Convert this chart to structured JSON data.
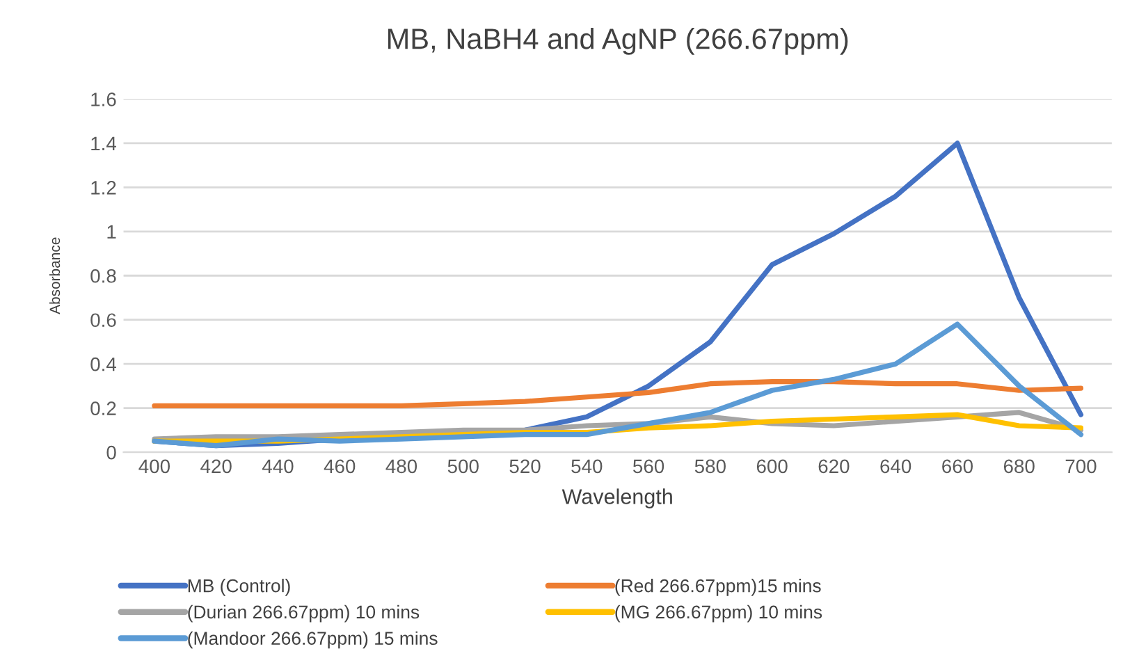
{
  "chart_data": {
    "type": "line",
    "title": "MB, NaBH4 and AgNP (266.67ppm)",
    "xlabel": "Wavelength",
    "ylabel": "Absorbance",
    "categories": [
      "400",
      "420",
      "440",
      "460",
      "480",
      "500",
      "520",
      "540",
      "560",
      "580",
      "600",
      "620",
      "640",
      "660",
      "680",
      "700"
    ],
    "series": [
      {
        "name": "MB (Control)",
        "color": "#4472c4",
        "values": [
          0.05,
          0.03,
          0.04,
          0.06,
          0.07,
          0.08,
          0.1,
          0.16,
          0.3,
          0.5,
          0.85,
          0.99,
          1.16,
          1.4,
          0.7,
          0.17
        ]
      },
      {
        "name": "(Red 266.67ppm)15 mins",
        "color": "#ed7d31",
        "values": [
          0.21,
          0.21,
          0.21,
          0.21,
          0.21,
          0.22,
          0.23,
          0.25,
          0.27,
          0.31,
          0.32,
          0.32,
          0.31,
          0.31,
          0.28,
          0.29
        ]
      },
      {
        "name": "(Durian 266.67ppm) 10 mins",
        "color": "#a5a5a5",
        "values": [
          0.06,
          0.07,
          0.07,
          0.08,
          0.09,
          0.1,
          0.1,
          0.12,
          0.13,
          0.16,
          0.13,
          0.12,
          0.14,
          0.16,
          0.18,
          0.1
        ]
      },
      {
        "name": "(MG 266.67ppm) 10 mins",
        "color": "#ffc000",
        "values": [
          0.05,
          0.05,
          0.05,
          0.06,
          0.07,
          0.08,
          0.09,
          0.09,
          0.11,
          0.12,
          0.14,
          0.15,
          0.16,
          0.17,
          0.12,
          0.11
        ]
      },
      {
        "name": "(Mandoor 266.67ppm) 15 mins",
        "color": "#5b9bd5",
        "values": [
          0.05,
          0.03,
          0.06,
          0.05,
          0.06,
          0.07,
          0.08,
          0.08,
          0.13,
          0.18,
          0.28,
          0.33,
          0.4,
          0.58,
          0.3,
          0.08
        ]
      }
    ],
    "ylim": [
      0,
      1.6
    ],
    "yticks": [
      0,
      0.2,
      0.4,
      0.6,
      0.8,
      1,
      1.2,
      1.4,
      1.6
    ],
    "grid": "y",
    "legend": "bottom",
    "line_style": "solid",
    "marker": "none"
  }
}
